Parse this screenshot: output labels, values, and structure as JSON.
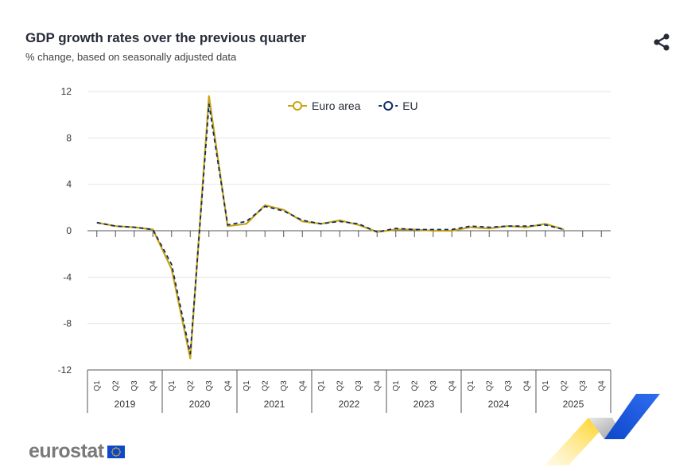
{
  "header": {
    "title": "GDP growth rates over the previous quarter",
    "subtitle": "% change, based on seasonally adjusted data",
    "share_icon": "share-icon"
  },
  "logo": {
    "text": "eurostat",
    "flag_icon": "eu-flag-icon"
  },
  "chart_data": {
    "type": "line",
    "title": "GDP growth rates over the previous quarter",
    "subtitle": "% change, based on seasonally adjusted data",
    "xlabel": "",
    "ylabel": "",
    "ylim": [
      -12,
      12
    ],
    "yticks": [
      12,
      8,
      4,
      0,
      -4,
      -8,
      -12
    ],
    "yticklabels": [
      "12",
      "8",
      "4",
      "0",
      "-4",
      "-8",
      "-12"
    ],
    "quarters": [
      "Q1",
      "Q2",
      "Q3",
      "Q4"
    ],
    "years": [
      "2019",
      "2020",
      "2021",
      "2022",
      "2023",
      "2024",
      "2025"
    ],
    "legend_position": "top-center",
    "grid": true,
    "series": [
      {
        "name": "Euro area",
        "color": "#c9a40f",
        "style": "solid",
        "values": [
          0.7,
          0.4,
          0.3,
          0.1,
          -3.3,
          -11.0,
          11.6,
          0.4,
          0.6,
          2.2,
          1.8,
          0.8,
          0.6,
          0.9,
          0.5,
          -0.1,
          0.1,
          0.1,
          0.0,
          0.0,
          0.3,
          0.2,
          0.4,
          0.3,
          0.6,
          0.1,
          null,
          null
        ]
      },
      {
        "name": "EU",
        "color": "#0e2b6b",
        "style": "dashed",
        "values": [
          0.7,
          0.4,
          0.3,
          0.1,
          -2.9,
          -10.6,
          10.9,
          0.5,
          0.8,
          2.1,
          1.7,
          0.9,
          0.6,
          0.8,
          0.6,
          -0.1,
          0.2,
          0.1,
          0.1,
          0.1,
          0.4,
          0.3,
          0.4,
          0.4,
          0.5,
          0.1,
          null,
          null
        ]
      }
    ]
  }
}
